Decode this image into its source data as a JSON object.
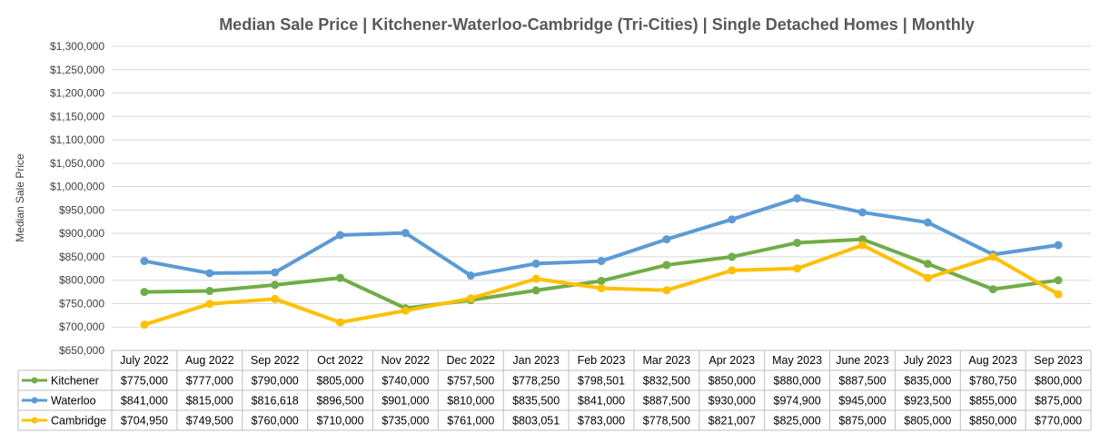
{
  "chart_data": {
    "type": "line",
    "title": "Median Sale Price | Kitchener-Waterloo-Cambridge (Tri-Cities) | Single Detached Homes | Monthly",
    "ylabel": "Median Sale Price",
    "xlabel": "",
    "ylim": [
      650000,
      1300000
    ],
    "ytick_step": 50000,
    "yticks": [
      "$650,000",
      "$700,000",
      "$750,000",
      "$800,000",
      "$850,000",
      "$900,000",
      "$950,000",
      "$1,000,000",
      "$1,050,000",
      "$1,100,000",
      "$1,150,000",
      "$1,200,000",
      "$1,250,000",
      "$1,300,000"
    ],
    "grid": true,
    "legend": "data-table",
    "categories": [
      "July 2022",
      "Aug 2022",
      "Sep 2022",
      "Oct 2022",
      "Nov 2022",
      "Dec 2022",
      "Jan 2023",
      "Feb 2023",
      "Mar 2023",
      "Apr 2023",
      "May 2023",
      "June 2023",
      "July 2023",
      "Aug 2023",
      "Sep 2023"
    ],
    "series": [
      {
        "name": "Kitchener",
        "color": "#70AD47",
        "values": [
          775000,
          777000,
          790000,
          805000,
          740000,
          757500,
          778250,
          798501,
          832500,
          850000,
          880000,
          887500,
          835000,
          780750,
          800000
        ],
        "labels": [
          "$775,000",
          "$777,000",
          "$790,000",
          "$805,000",
          "$740,000",
          "$757,500",
          "$778,250",
          "$798,501",
          "$832,500",
          "$850,000",
          "$880,000",
          "$887,500",
          "$835,000",
          "$780,750",
          "$800,000"
        ]
      },
      {
        "name": "Waterloo",
        "color": "#5B9BD5",
        "values": [
          841000,
          815000,
          816618,
          896500,
          901000,
          810000,
          835500,
          841000,
          887500,
          930000,
          974900,
          945000,
          923500,
          855000,
          875000
        ],
        "labels": [
          "$841,000",
          "$815,000",
          "$816,618",
          "$896,500",
          "$901,000",
          "$810,000",
          "$835,500",
          "$841,000",
          "$887,500",
          "$930,000",
          "$974,900",
          "$945,000",
          "$923,500",
          "$855,000",
          "$875,000"
        ]
      },
      {
        "name": "Cambridge",
        "color": "#FFC000",
        "values": [
          704950,
          749500,
          760000,
          710000,
          735000,
          761000,
          803051,
          783000,
          778500,
          821007,
          825000,
          875000,
          805000,
          850000,
          770000
        ],
        "labels": [
          "$704,950",
          "$749,500",
          "$760,000",
          "$710,000",
          "$735,000",
          "$761,000",
          "$803,051",
          "$783,000",
          "$778,500",
          "$821,007",
          "$825,000",
          "$875,000",
          "$805,000",
          "$850,000",
          "$770,000"
        ]
      }
    ]
  }
}
